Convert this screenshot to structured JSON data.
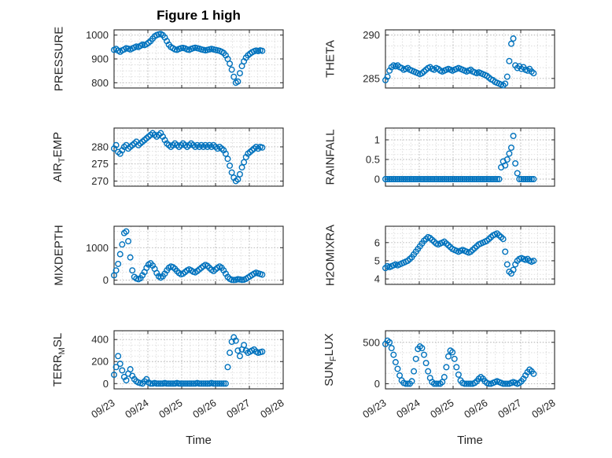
{
  "title": "Figure 1 high",
  "xlabel": "Time",
  "colors": {
    "marker": "#0072BD",
    "axis": "#262626"
  },
  "chart_data": {
    "type": "scatter",
    "marker": "open-circle",
    "legend": "none",
    "grid": "on-dotted",
    "xlim": [
      0,
      5
    ],
    "x_tick_labels": [
      "09/23",
      "09/24",
      "09/25",
      "09/26",
      "09/27",
      "09/28"
    ],
    "x": [
      0,
      0.06,
      0.12,
      0.18,
      0.24,
      0.3,
      0.36,
      0.42,
      0.48,
      0.54,
      0.6,
      0.66,
      0.72,
      0.78,
      0.84,
      0.9,
      0.96,
      1.02,
      1.08,
      1.14,
      1.2,
      1.26,
      1.32,
      1.38,
      1.44,
      1.5,
      1.56,
      1.62,
      1.68,
      1.74,
      1.8,
      1.86,
      1.92,
      1.98,
      2.04,
      2.1,
      2.16,
      2.22,
      2.28,
      2.34,
      2.4,
      2.46,
      2.52,
      2.58,
      2.64,
      2.7,
      2.76,
      2.82,
      2.88,
      2.94,
      3,
      3.06,
      3.12,
      3.18,
      3.24,
      3.3,
      3.36,
      3.42,
      3.48,
      3.54,
      3.6,
      3.66,
      3.72,
      3.78,
      3.84,
      3.9,
      3.96,
      4.02,
      4.08,
      4.14,
      4.2,
      4.26,
      4.32,
      4.38
    ],
    "panels": [
      {
        "name": "pressure",
        "row": 0,
        "col": 0,
        "ylabel": "PRESSURE",
        "ylabel_segments": [
          {
            "text": "PRESSURE",
            "sub": false
          }
        ],
        "yticks": [
          800,
          900,
          1000
        ],
        "ylim": [
          778,
          1022
        ],
        "y": [
          938,
          942,
          935,
          930,
          936,
          940,
          945,
          943,
          940,
          944,
          948,
          952,
          950,
          955,
          960,
          958,
          962,
          968,
          975,
          985,
          995,
          1000,
          1003,
          1005,
          1000,
          990,
          975,
          960,
          950,
          945,
          940,
          938,
          942,
          945,
          946,
          944,
          940,
          938,
          942,
          945,
          947,
          945,
          943,
          940,
          938,
          936,
          938,
          940,
          942,
          940,
          938,
          936,
          934,
          930,
          925,
          915,
          900,
          880,
          855,
          825,
          800,
          805,
          840,
          870,
          890,
          905,
          915,
          922,
          928,
          932,
          935,
          933,
          936,
          934
        ]
      },
      {
        "name": "theta",
        "row": 0,
        "col": 1,
        "ylabel": "THETA",
        "ylabel_segments": [
          {
            "text": "THETA",
            "sub": false
          }
        ],
        "yticks": [
          285,
          290
        ],
        "ylim": [
          283.9,
          290.6
        ],
        "y": [
          284.8,
          285.2,
          285.9,
          286.3,
          286.5,
          286.4,
          286.5,
          286.3,
          286.2,
          286,
          286.1,
          286.2,
          286,
          285.9,
          285.8,
          285.7,
          285.6,
          285.5,
          285.6,
          285.8,
          286,
          286.2,
          286.3,
          286.1,
          286,
          286.2,
          286.1,
          285.9,
          285.8,
          285.9,
          286,
          286.1,
          286,
          285.9,
          286,
          286.1,
          286.2,
          286.1,
          286,
          285.9,
          285.8,
          285.9,
          286,
          285.8,
          285.7,
          285.6,
          285.7,
          285.6,
          285.5,
          285.4,
          285.3,
          285.1,
          284.9,
          284.8,
          284.6,
          284.5,
          284.4,
          284.3,
          284.2,
          284.4,
          285.2,
          287,
          289,
          289.6,
          286.5,
          286.2,
          286.4,
          286.1,
          286.3,
          286,
          285.9,
          286.1,
          285.8,
          285.6
        ]
      },
      {
        "name": "air-temp",
        "row": 1,
        "col": 0,
        "ylabel": "AIR_TEMP",
        "ylabel_segments": [
          {
            "text": "AIR",
            "sub": false
          },
          {
            "text": "T",
            "sub": true
          },
          {
            "text": "EMP",
            "sub": false
          }
        ],
        "yticks": [
          270,
          275,
          280
        ],
        "ylim": [
          268.5,
          285.5
        ],
        "y": [
          279.5,
          280.5,
          278.5,
          278,
          279,
          280,
          280.5,
          279.5,
          280,
          280.5,
          281,
          281.5,
          280.5,
          281,
          281.5,
          282,
          282.5,
          283,
          283.5,
          284,
          283.5,
          283,
          283.5,
          284,
          283,
          282,
          281,
          280.5,
          280,
          280.5,
          281,
          280.5,
          280,
          280.5,
          281,
          280.5,
          280,
          280.5,
          281,
          280.5,
          280,
          280.5,
          280,
          280.5,
          280,
          280.5,
          280,
          280.5,
          280,
          280.5,
          280,
          279.5,
          280,
          279.5,
          279,
          278,
          276.5,
          274.5,
          272.5,
          271,
          270,
          270.5,
          272,
          274,
          275.5,
          277,
          278,
          278.5,
          279,
          279.5,
          280,
          279.5,
          280,
          279.8
        ]
      },
      {
        "name": "rainfall",
        "row": 1,
        "col": 1,
        "ylabel": "RAINFALL",
        "ylabel_segments": [
          {
            "text": "RAINFALL",
            "sub": false
          }
        ],
        "yticks": [
          0,
          0.5,
          1
        ],
        "ylim": [
          -0.18,
          1.3
        ],
        "y": [
          0,
          0,
          0,
          0,
          0,
          0,
          0,
          0,
          0,
          0,
          0,
          0,
          0,
          0,
          0,
          0,
          0,
          0,
          0,
          0,
          0,
          0,
          0,
          0,
          0,
          0,
          0,
          0,
          0,
          0,
          0,
          0,
          0,
          0,
          0,
          0,
          0,
          0,
          0,
          0,
          0,
          0,
          0,
          0,
          0,
          0,
          0,
          0,
          0,
          0,
          0,
          0,
          0,
          0,
          0,
          0,
          0,
          0.3,
          0.45,
          0.35,
          0.5,
          0.65,
          0.8,
          1.1,
          0.4,
          0.15,
          0,
          0,
          0,
          0,
          0,
          0,
          0,
          0
        ]
      },
      {
        "name": "mixdepth",
        "row": 2,
        "col": 0,
        "ylabel": "MIXDEPTH",
        "ylabel_segments": [
          {
            "text": "MIXDEPTH",
            "sub": false
          }
        ],
        "yticks": [
          0,
          1000
        ],
        "ylim": [
          -130,
          1660
        ],
        "y": [
          150,
          300,
          500,
          800,
          1100,
          1450,
          1500,
          1200,
          700,
          300,
          100,
          50,
          30,
          60,
          150,
          250,
          380,
          480,
          520,
          450,
          350,
          220,
          120,
          80,
          120,
          200,
          300,
          380,
          420,
          400,
          350,
          280,
          220,
          180,
          200,
          250,
          300,
          330,
          300,
          260,
          240,
          280,
          330,
          380,
          430,
          470,
          440,
          380,
          320,
          280,
          330,
          380,
          420,
          380,
          300,
          200,
          100,
          40,
          10,
          5,
          10,
          30,
          20,
          10,
          15,
          40,
          80,
          120,
          160,
          200,
          230,
          210,
          190,
          170
        ]
      },
      {
        "name": "h2omixra",
        "row": 2,
        "col": 1,
        "ylabel": "H2OMIXRA",
        "ylabel_segments": [
          {
            "text": "H2OMIXRA",
            "sub": false
          }
        ],
        "yticks": [
          4,
          5,
          6
        ],
        "ylim": [
          3.7,
          6.9
        ],
        "y": [
          4.6,
          4.7,
          4.65,
          4.7,
          4.75,
          4.8,
          4.75,
          4.8,
          4.85,
          4.9,
          4.95,
          5,
          5.1,
          5.2,
          5.35,
          5.5,
          5.65,
          5.8,
          5.95,
          6.1,
          6.2,
          6.3,
          6.25,
          6.15,
          6.05,
          5.95,
          5.9,
          5.95,
          6,
          6.05,
          5.95,
          5.85,
          5.75,
          5.65,
          5.6,
          5.55,
          5.5,
          5.55,
          5.6,
          5.55,
          5.5,
          5.45,
          5.5,
          5.6,
          5.7,
          5.8,
          5.9,
          5.95,
          6,
          6.05,
          6.1,
          6.2,
          6.3,
          6.4,
          6.45,
          6.5,
          6.4,
          6.3,
          6.2,
          5.5,
          4.8,
          4.4,
          4.3,
          4.5,
          4.8,
          5,
          5.1,
          5.15,
          5.1,
          5.05,
          5.1,
          5,
          4.95,
          5
        ]
      },
      {
        "name": "terr-msl",
        "row": 3,
        "col": 0,
        "ylabel": "TERR_MSL",
        "ylabel_segments": [
          {
            "text": "TERR",
            "sub": false
          },
          {
            "text": "M",
            "sub": true
          },
          {
            "text": "SL",
            "sub": false
          }
        ],
        "yticks": [
          0,
          200,
          400
        ],
        "ylim": [
          -48,
          480
        ],
        "y": [
          80,
          150,
          250,
          180,
          120,
          60,
          30,
          90,
          130,
          70,
          40,
          20,
          10,
          5,
          0,
          20,
          40,
          10,
          0,
          0,
          5,
          0,
          0,
          0,
          0,
          5,
          0,
          0,
          0,
          0,
          0,
          5,
          0,
          0,
          0,
          0,
          0,
          0,
          0,
          0,
          0,
          5,
          0,
          0,
          0,
          0,
          0,
          0,
          5,
          0,
          0,
          0,
          0,
          0,
          0,
          0,
          150,
          280,
          380,
          420,
          390,
          300,
          250,
          310,
          350,
          300,
          280,
          290,
          300,
          310,
          290,
          280,
          285,
          290
        ]
      },
      {
        "name": "sun-flux",
        "row": 3,
        "col": 1,
        "ylabel": "SUN_FLUX",
        "ylabel_segments": [
          {
            "text": "SUN",
            "sub": false
          },
          {
            "text": "F",
            "sub": true
          },
          {
            "text": "LUX",
            "sub": false
          }
        ],
        "yticks": [
          0,
          500
        ],
        "ylim": [
          -62,
          640
        ],
        "y": [
          480,
          520,
          500,
          430,
          350,
          260,
          180,
          100,
          40,
          10,
          0,
          0,
          0,
          30,
          150,
          300,
          420,
          450,
          430,
          350,
          250,
          150,
          70,
          20,
          0,
          0,
          0,
          0,
          20,
          80,
          200,
          330,
          400,
          380,
          300,
          200,
          110,
          40,
          10,
          0,
          0,
          0,
          0,
          0,
          10,
          30,
          60,
          80,
          60,
          30,
          10,
          0,
          0,
          10,
          20,
          30,
          20,
          10,
          0,
          0,
          0,
          0,
          10,
          20,
          10,
          0,
          10,
          30,
          60,
          100,
          140,
          170,
          150,
          120
        ]
      }
    ]
  }
}
